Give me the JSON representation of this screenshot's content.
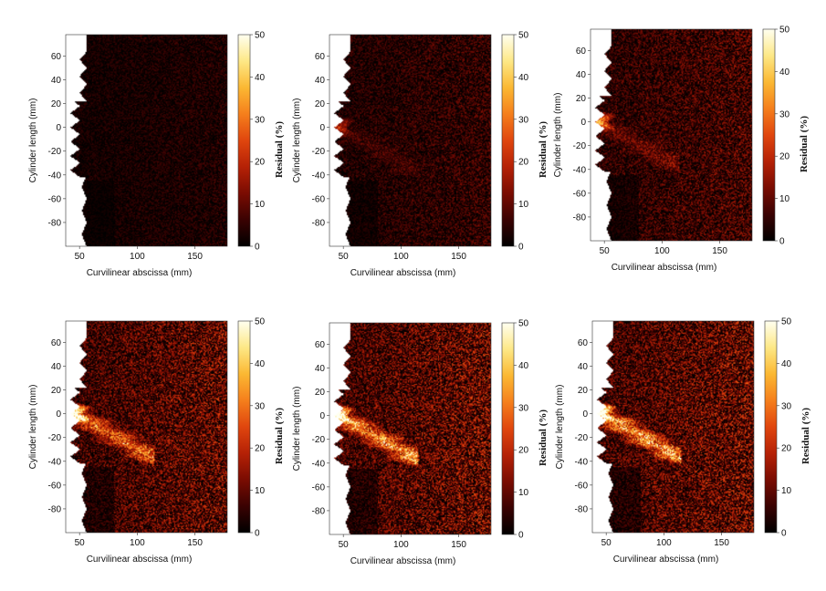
{
  "colorbar": {
    "label": "Residual (%)",
    "ticks": [
      0,
      10,
      20,
      30,
      40,
      50
    ],
    "stops": [
      "#000000",
      "#3a0202",
      "#7a0c02",
      "#b52106",
      "#e0460e",
      "#f57f1c",
      "#fbb833",
      "#fde886",
      "#fffff0"
    ]
  },
  "chart_data": [
    {
      "type": "heatmap",
      "xlabel": "Curvilinear abscissa (mm)",
      "ylabel": "Cylinder length (mm)",
      "xticks": [
        50,
        100,
        150
      ],
      "yticks": [
        60,
        40,
        20,
        0,
        -20,
        -40,
        -60,
        -80
      ],
      "xlim": [
        38,
        178
      ],
      "ylim": [
        -100,
        78
      ],
      "zlim": [
        0,
        50
      ],
      "intensity": 0.14,
      "hotspot_peak": 0,
      "damage_band": 0
    },
    {
      "type": "heatmap",
      "xlabel": "Curvilinear abscissa (mm)",
      "ylabel": "Cylinder length (mm)",
      "xticks": [
        50,
        100,
        150
      ],
      "yticks": [
        60,
        40,
        20,
        0,
        -20,
        -40,
        -60,
        -80
      ],
      "xlim": [
        38,
        178
      ],
      "ylim": [
        -100,
        78
      ],
      "zlim": [
        0,
        50
      ],
      "intensity": 0.22,
      "hotspot_peak": 22,
      "damage_band": 0.1
    },
    {
      "type": "heatmap",
      "xlabel": "Curvilinear abscissa (mm)",
      "ylabel": "Cylinder length (mm)",
      "xticks": [
        50,
        100,
        150
      ],
      "yticks": [
        60,
        40,
        20,
        0,
        -20,
        -40,
        -60,
        -80
      ],
      "xlim": [
        38,
        178
      ],
      "ylim": [
        -100,
        78
      ],
      "zlim": [
        0,
        50
      ],
      "intensity": 0.3,
      "hotspot_peak": 40,
      "damage_band": 0.2
    },
    {
      "type": "heatmap",
      "xlabel": "Curvilinear abscissa (mm)",
      "ylabel": "Cylinder length (mm)",
      "xticks": [
        50,
        100,
        150
      ],
      "yticks": [
        60,
        40,
        20,
        0,
        -20,
        -40,
        -60,
        -80
      ],
      "xlim": [
        38,
        178
      ],
      "ylim": [
        -100,
        78
      ],
      "zlim": [
        0,
        50
      ],
      "intensity": 0.42,
      "hotspot_peak": 50,
      "damage_band": 0.7
    },
    {
      "type": "heatmap",
      "xlabel": "Curvilinear abscissa (mm)",
      "ylabel": "Cylinder length (mm)",
      "xticks": [
        50,
        100,
        150
      ],
      "yticks": [
        60,
        40,
        20,
        0,
        -20,
        -40,
        -60,
        -80
      ],
      "xlim": [
        38,
        178
      ],
      "ylim": [
        -100,
        78
      ],
      "zlim": [
        0,
        50
      ],
      "intensity": 0.45,
      "hotspot_peak": 50,
      "damage_band": 0.85
    },
    {
      "type": "heatmap",
      "xlabel": "Curvilinear abscissa (mm)",
      "ylabel": "Cylinder length (mm)",
      "xticks": [
        50,
        100,
        150
      ],
      "yticks": [
        60,
        40,
        20,
        0,
        -20,
        -40,
        -60,
        -80
      ],
      "xlim": [
        38,
        178
      ],
      "ylim": [
        -100,
        78
      ],
      "zlim": [
        0,
        50
      ],
      "intensity": 0.45,
      "hotspot_peak": 50,
      "damage_band": 0.9
    }
  ]
}
